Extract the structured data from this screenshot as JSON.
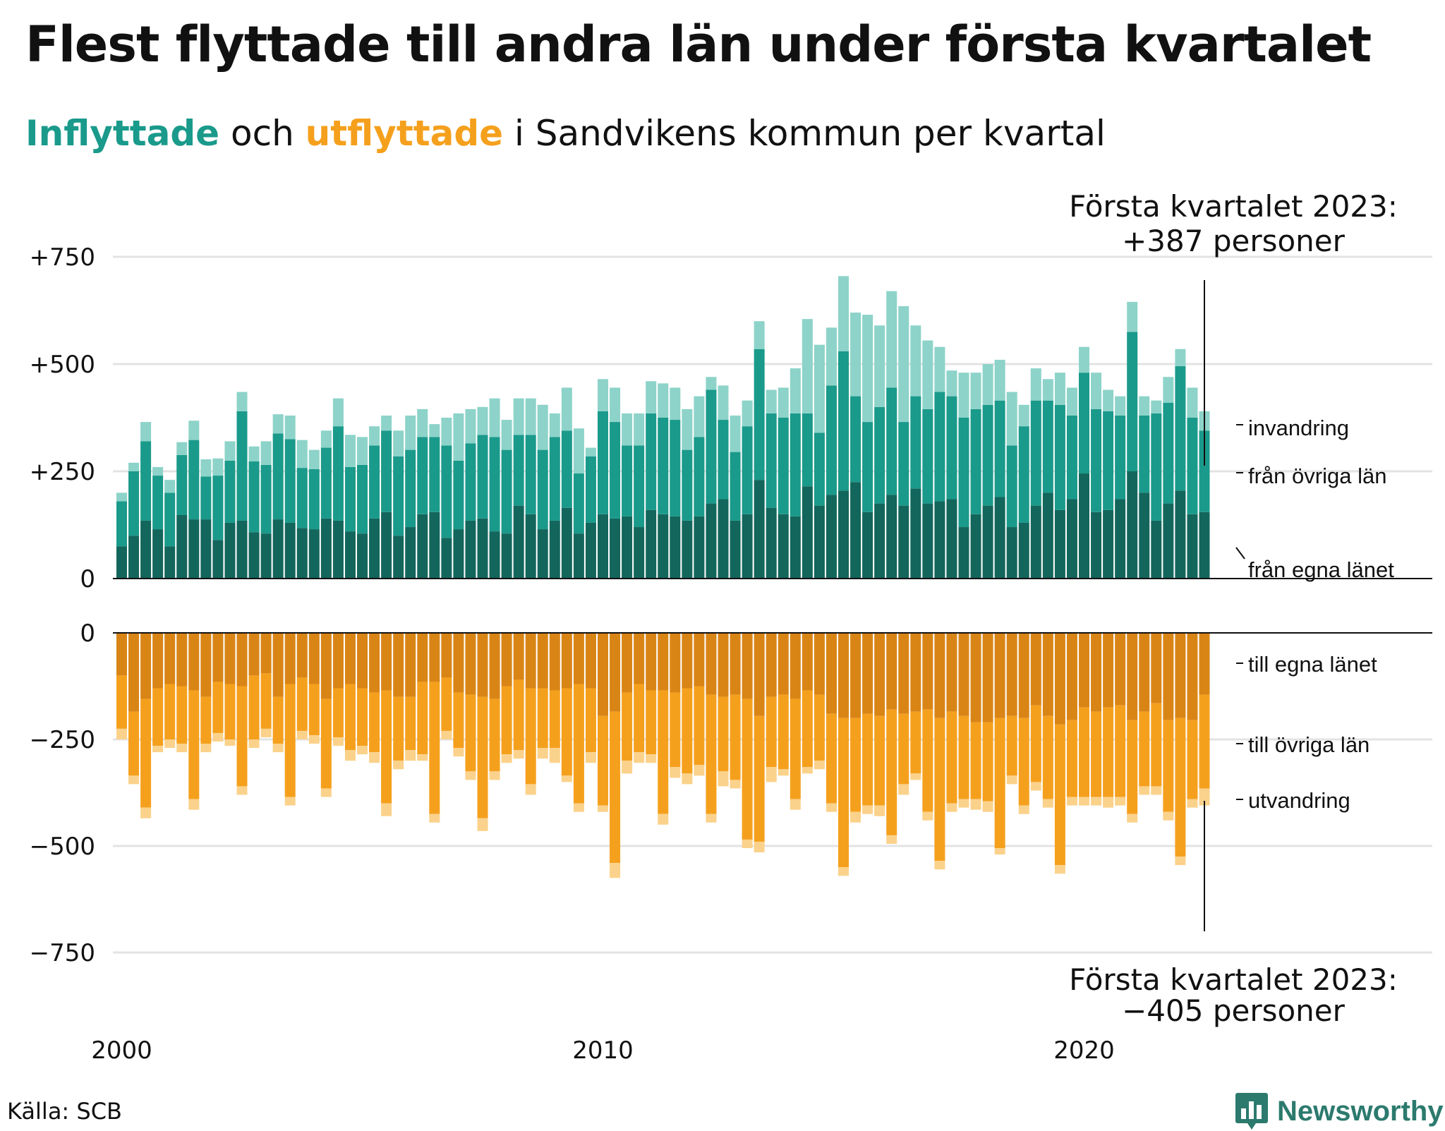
{
  "header": {
    "title": "Flest flyttade till andra län under första kvartalet",
    "subtitle_inflyttade": "Inflyttade",
    "subtitle_och": " och ",
    "subtitle_utflyttade": "utflyttade",
    "subtitle_rest": " i Sandvikens kommun per kvartal"
  },
  "footer": {
    "source": "Källa: SCB",
    "brand": "Newsworthy",
    "brand_icon": "bar-chart-logo-icon"
  },
  "colors": {
    "in_egna": "#13665c",
    "in_ovriga": "#1a9a8b",
    "in_invandring": "#8dd3c9",
    "out_egna": "#d98516",
    "out_ovriga": "#f5a01d",
    "out_utvandring": "#fbd28b",
    "grid": "#e3e3e3"
  },
  "chart_data": {
    "type": "bar",
    "stacked": true,
    "x_start": "2000 Q1",
    "x_end": "2023 Q1",
    "x_ticks": [
      "2000",
      "2010",
      "2020"
    ],
    "y_ticks_in": [
      "+750",
      "+500",
      "+250",
      "0"
    ],
    "y_ticks_in_values": [
      750,
      500,
      250,
      0
    ],
    "y_ticks_out": [
      "0",
      "−250",
      "−500",
      "−750"
    ],
    "y_ticks_out_values": [
      0,
      -250,
      -500,
      -750
    ],
    "ylim_in": [
      0,
      750
    ],
    "ylim_out": [
      -750,
      0
    ],
    "grid": true,
    "series_labels_in": [
      "invandring",
      "från övriga län",
      "från egna länet"
    ],
    "series_labels_out": [
      "till egna länet",
      "till övriga län",
      "utvandring"
    ],
    "annotation_in_line1": "Första kvartalet 2023:",
    "annotation_in_line2": "+387 personer",
    "annotation_out_line1": "Första kvartalet 2023:",
    "annotation_out_line2": "−405 personer",
    "in_egna": [
      75,
      100,
      135,
      115,
      75,
      148,
      138,
      138,
      90,
      130,
      135,
      108,
      105,
      138,
      130,
      118,
      115,
      140,
      135,
      110,
      105,
      140,
      155,
      100,
      120,
      150,
      155,
      95,
      115,
      135,
      140,
      110,
      105,
      170,
      150,
      115,
      135,
      165,
      105,
      130,
      150,
      140,
      145,
      120,
      160,
      150,
      145,
      135,
      145,
      175,
      185,
      135,
      150,
      230,
      165,
      150,
      145,
      215,
      170,
      195,
      205,
      225,
      155,
      175,
      195,
      170,
      210,
      175,
      180,
      185,
      120,
      150,
      170,
      190,
      120,
      130,
      170,
      200,
      160,
      185,
      245,
      155,
      160,
      185,
      250,
      200,
      135,
      175,
      205,
      150,
      155
    ],
    "in_ovriga": [
      105,
      150,
      185,
      125,
      125,
      140,
      185,
      100,
      150,
      145,
      255,
      165,
      160,
      200,
      195,
      140,
      140,
      165,
      220,
      150,
      160,
      170,
      190,
      185,
      180,
      180,
      175,
      215,
      160,
      180,
      195,
      220,
      195,
      165,
      185,
      185,
      195,
      180,
      140,
      155,
      240,
      225,
      165,
      190,
      225,
      225,
      225,
      165,
      185,
      265,
      185,
      160,
      205,
      305,
      220,
      225,
      240,
      170,
      170,
      255,
      325,
      200,
      210,
      225,
      250,
      195,
      215,
      220,
      255,
      240,
      255,
      245,
      235,
      225,
      190,
      225,
      245,
      215,
      245,
      195,
      235,
      240,
      230,
      195,
      325,
      180,
      250,
      235,
      290,
      225,
      190
    ],
    "in_invandring": [
      20,
      20,
      45,
      20,
      30,
      30,
      45,
      40,
      40,
      45,
      45,
      35,
      55,
      45,
      55,
      65,
      45,
      40,
      65,
      75,
      65,
      45,
      35,
      60,
      80,
      65,
      30,
      65,
      110,
      80,
      65,
      90,
      70,
      85,
      85,
      105,
      55,
      100,
      105,
      20,
      75,
      80,
      75,
      75,
      75,
      80,
      75,
      95,
      95,
      30,
      80,
      85,
      60,
      65,
      55,
      70,
      105,
      220,
      205,
      135,
      175,
      195,
      250,
      190,
      225,
      270,
      165,
      160,
      105,
      60,
      105,
      85,
      95,
      95,
      125,
      50,
      75,
      50,
      75,
      65,
      60,
      85,
      50,
      45,
      70,
      45,
      30,
      60,
      40,
      70,
      45
    ],
    "out_egna": [
      100,
      185,
      155,
      130,
      120,
      125,
      135,
      150,
      115,
      120,
      125,
      100,
      95,
      150,
      120,
      105,
      120,
      155,
      130,
      120,
      130,
      140,
      135,
      150,
      150,
      115,
      115,
      105,
      140,
      145,
      150,
      155,
      125,
      110,
      130,
      130,
      135,
      130,
      120,
      130,
      195,
      185,
      140,
      120,
      135,
      135,
      140,
      130,
      125,
      145,
      150,
      145,
      155,
      195,
      150,
      145,
      155,
      135,
      145,
      190,
      200,
      200,
      190,
      195,
      180,
      190,
      185,
      180,
      200,
      185,
      195,
      210,
      210,
      200,
      195,
      200,
      170,
      195,
      215,
      205,
      175,
      185,
      175,
      170,
      205,
      185,
      165,
      205,
      200,
      205,
      145
    ],
    "out_ovriga": [
      125,
      150,
      255,
      135,
      130,
      135,
      255,
      110,
      120,
      130,
      235,
      150,
      130,
      110,
      265,
      125,
      120,
      210,
      115,
      155,
      135,
      140,
      265,
      150,
      125,
      170,
      310,
      125,
      130,
      180,
      285,
      170,
      160,
      165,
      225,
      140,
      135,
      205,
      280,
      150,
      210,
      355,
      160,
      160,
      150,
      290,
      175,
      200,
      185,
      280,
      175,
      200,
      330,
      295,
      165,
      175,
      235,
      180,
      155,
      210,
      350,
      220,
      215,
      210,
      295,
      165,
      145,
      240,
      335,
      215,
      195,
      180,
      185,
      305,
      140,
      205,
      180,
      195,
      330,
      180,
      210,
      200,
      210,
      215,
      220,
      175,
      195,
      215,
      325,
      185,
      220
    ],
    "out_utvandring": [
      25,
      20,
      25,
      15,
      20,
      20,
      25,
      20,
      20,
      15,
      20,
      20,
      20,
      20,
      20,
      20,
      20,
      20,
      20,
      25,
      20,
      25,
      30,
      20,
      25,
      15,
      20,
      20,
      20,
      20,
      30,
      20,
      20,
      20,
      25,
      25,
      35,
      15,
      20,
      25,
      15,
      35,
      30,
      25,
      20,
      25,
      25,
      25,
      25,
      20,
      35,
      20,
      20,
      25,
      35,
      15,
      25,
      15,
      20,
      20,
      20,
      25,
      20,
      25,
      20,
      25,
      15,
      20,
      20,
      20,
      20,
      25,
      25,
      15,
      20,
      20,
      20,
      20,
      20,
      20,
      20,
      20,
      25,
      20,
      20,
      20,
      20,
      20,
      20,
      20,
      40
    ]
  }
}
